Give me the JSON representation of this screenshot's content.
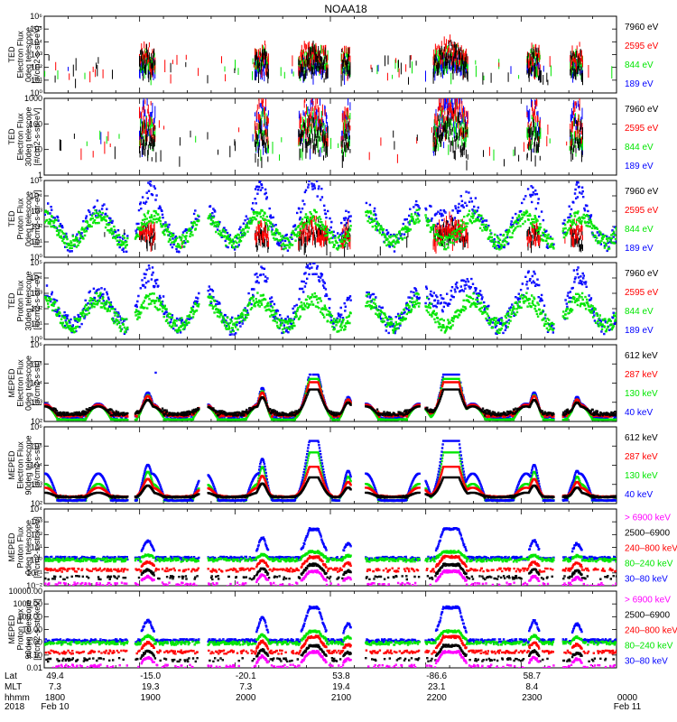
{
  "title": "NOAA18",
  "colors": {
    "black": "#000000",
    "red": "#ff0000",
    "green": "#00e600",
    "blue": "#0000ff",
    "magenta": "#ff00ff"
  },
  "chart_data": [
    {
      "type": "scatter",
      "ylabel_lines": [
        "TED",
        "Electron Flux",
        "0deg telescope",
        "[#/cm2-s-str-eV]"
      ],
      "yscale": "log",
      "ylim": [
        1,
        1000000
      ],
      "yticks": [
        {
          "v": 1,
          "label": "10⁰"
        },
        {
          "v": 10,
          "label": "10¹"
        },
        {
          "v": 100,
          "label": "10²"
        },
        {
          "v": 1000,
          "label": "10³"
        },
        {
          "v": 10000,
          "label": "10⁴"
        },
        {
          "v": 100000,
          "label": "10⁵"
        },
        {
          "v": 1000000,
          "label": "10⁶"
        }
      ],
      "legend": [
        {
          "label": "7960 eV",
          "color": "#000000"
        },
        {
          "label": "2595 eV",
          "color": "#ff0000"
        },
        {
          "label": "844 eV",
          "color": "#00e600"
        },
        {
          "label": "189 eV",
          "color": "#0000ff"
        }
      ],
      "draw_order": [
        3,
        2,
        1,
        0
      ],
      "series": [
        {
          "model": "spiky",
          "params": {
            "base": 40,
            "amp": 10,
            "peak": 600,
            "density": 0.5
          }
        },
        {
          "model": "spiky",
          "params": {
            "base": 80,
            "amp": 6,
            "peak": 2500,
            "density": 0.55
          }
        },
        {
          "model": "spiky",
          "params": {
            "base": 60,
            "amp": 5,
            "peak": 1200,
            "density": 0.35
          }
        },
        {
          "model": "spiky",
          "params": {
            "base": 60,
            "amp": 3,
            "peak": 500,
            "density": 0.1
          }
        }
      ]
    },
    {
      "type": "scatter",
      "ylabel_lines": [
        "TED",
        "Electron Flux",
        "30deg telescope",
        "[#/cm2-s-str-eV]"
      ],
      "yscale": "log",
      "ylim": [
        1,
        1000
      ],
      "yticks": [
        {
          "v": 1,
          "label": "1"
        },
        {
          "v": 10,
          "label": "10"
        },
        {
          "v": 100,
          "label": "100"
        },
        {
          "v": 1000,
          "label": "1000"
        }
      ],
      "legend": [
        {
          "label": "7960 eV",
          "color": "#000000"
        },
        {
          "label": "2595 eV",
          "color": "#ff0000"
        },
        {
          "label": "844 eV",
          "color": "#00e600"
        },
        {
          "label": "189 eV",
          "color": "#0000ff"
        }
      ],
      "draw_order": [
        3,
        2,
        1,
        0
      ],
      "series": [
        {
          "model": "spiky",
          "params": {
            "base": 8,
            "amp": 4,
            "peak": 60,
            "density": 0.5
          }
        },
        {
          "model": "spiky",
          "params": {
            "base": 15,
            "amp": 4,
            "peak": 400,
            "density": 0.5
          }
        },
        {
          "model": "spiky",
          "params": {
            "base": 12,
            "amp": 3,
            "peak": 150,
            "density": 0.3
          }
        },
        {
          "model": "spiky",
          "params": {
            "base": 20,
            "amp": 5,
            "peak": 300,
            "density": 0.12
          }
        }
      ]
    },
    {
      "type": "scatter",
      "ylabel_lines": [
        "TED",
        "Proton Flux",
        "0deg telescope",
        "[#/cm2-s-str-eV]"
      ],
      "yscale": "log",
      "ylim": [
        1,
        100000
      ],
      "yticks": [
        {
          "v": 1,
          "label": "10⁰"
        },
        {
          "v": 10,
          "label": "10¹"
        },
        {
          "v": 100,
          "label": "10²"
        },
        {
          "v": 1000,
          "label": "10³"
        },
        {
          "v": 10000,
          "label": "10⁴"
        },
        {
          "v": 100000,
          "label": "10⁵"
        }
      ],
      "legend": [
        {
          "label": "7960 eV",
          "color": "#000000"
        },
        {
          "label": "2595 eV",
          "color": "#ff0000"
        },
        {
          "label": "844 eV",
          "color": "#00e600"
        },
        {
          "label": "189 eV",
          "color": "#0000ff"
        }
      ],
      "draw_order": [
        3,
        0,
        1,
        2
      ],
      "series": [
        {
          "model": "spiky",
          "params": {
            "base": 10,
            "amp": 4,
            "peak": 60,
            "density": 0.15
          }
        },
        {
          "model": "spiky",
          "params": {
            "base": 15,
            "amp": 4,
            "peak": 100,
            "density": 0.12
          }
        },
        {
          "model": "continuous",
          "params": {
            "base": 70,
            "amp": 14,
            "density": 1
          }
        },
        {
          "model": "continuous",
          "params": {
            "base": 120,
            "amp": 30,
            "density": 0.6,
            "peaky": 1
          }
        }
      ]
    },
    {
      "type": "scatter",
      "ylabel_lines": [
        "TED",
        "Proton Flux",
        "30deg telescope",
        "[#/cm2-s-str-eV]"
      ],
      "yscale": "log",
      "ylim": [
        1,
        100000
      ],
      "yticks": [
        {
          "v": 1,
          "label": "10⁰"
        },
        {
          "v": 10,
          "label": "10¹"
        },
        {
          "v": 100,
          "label": "10²"
        },
        {
          "v": 1000,
          "label": "10³"
        },
        {
          "v": 10000,
          "label": "10⁴"
        },
        {
          "v": 100000,
          "label": "10⁵"
        }
      ],
      "legend": [
        {
          "label": "7960 eV",
          "color": "#000000"
        },
        {
          "label": "2595 eV",
          "color": "#ff0000"
        },
        {
          "label": "844 eV",
          "color": "#00e600"
        },
        {
          "label": "189 eV",
          "color": "#0000ff"
        }
      ],
      "draw_order": [
        3,
        2
      ],
      "series": [
        {
          "model": "none",
          "params": {}
        },
        {
          "model": "none",
          "params": {}
        },
        {
          "model": "continuous",
          "params": {
            "base": 60,
            "amp": 14,
            "density": 1
          }
        },
        {
          "model": "continuous",
          "params": {
            "base": 100,
            "amp": 30,
            "density": 0.7,
            "peaky": 1
          }
        }
      ]
    },
    {
      "type": "scatter",
      "ylabel_lines": [
        "MEPED",
        "Electron Flux",
        "0deg telescope",
        "[#/cm2-s-str]"
      ],
      "yscale": "log",
      "ylim": [
        100,
        1000000
      ],
      "yticks": [
        {
          "v": 100,
          "label": "10²"
        },
        {
          "v": 1000,
          "label": "10³"
        },
        {
          "v": 10000,
          "label": "10⁴"
        },
        {
          "v": 100000,
          "label": "10⁵"
        },
        {
          "v": 1000000,
          "label": "10⁶"
        }
      ],
      "legend": [
        {
          "label": "612 keV",
          "color": "#000000"
        },
        {
          "label": "287 keV",
          "color": "#ff0000"
        },
        {
          "label": "130 keV",
          "color": "#00e600"
        },
        {
          "label": "40 keV",
          "color": "#0000ff"
        }
      ],
      "draw_order": [
        3,
        2,
        1,
        0
      ],
      "series": [
        {
          "model": "floor",
          "params": {
            "floor": 220,
            "amp": 3,
            "peak": 5000,
            "density": 1
          }
        },
        {
          "model": "floor",
          "params": {
            "floor": 190,
            "amp": 2.5,
            "peak": 12000,
            "density": 0.9
          }
        },
        {
          "model": "floor",
          "params": {
            "floor": 130,
            "amp": 1.2,
            "peak": 18000,
            "density": 1
          }
        },
        {
          "model": "floor",
          "params": {
            "floor": 140,
            "amp": 4,
            "peak": 30000,
            "density": 0.8,
            "spikes": 1
          }
        }
      ]
    },
    {
      "type": "scatter",
      "ylabel_lines": [
        "MEPED",
        "Electron Flux",
        "90deg telescope",
        "[#/cm2-s-str]"
      ],
      "yscale": "log",
      "ylim": [
        100,
        1000000
      ],
      "yticks": [
        {
          "v": 100,
          "label": "10²"
        },
        {
          "v": 1000,
          "label": "10³"
        },
        {
          "v": 10000,
          "label": "10⁴"
        },
        {
          "v": 100000,
          "label": "10⁵"
        },
        {
          "v": 1000000,
          "label": "10⁶"
        }
      ],
      "legend": [
        {
          "label": "612 keV",
          "color": "#000000"
        },
        {
          "label": "287 keV",
          "color": "#ff0000"
        },
        {
          "label": "130 keV",
          "color": "#00e600"
        },
        {
          "label": "40 keV",
          "color": "#0000ff"
        }
      ],
      "draw_order": [
        2,
        3,
        1,
        0
      ],
      "series": [
        {
          "model": "floor",
          "params": {
            "floor": 220,
            "amp": 1.5,
            "peak": 2500,
            "density": 1,
            "scale": 0.7
          }
        },
        {
          "model": "floor",
          "params": {
            "floor": 230,
            "amp": 1.5,
            "peak": 9000,
            "density": 1,
            "scale": 0.9
          }
        },
        {
          "model": "floor",
          "params": {
            "floor": 150,
            "amp": 1.3,
            "peak": 50000,
            "density": 1,
            "scale": 1
          }
        },
        {
          "model": "floor",
          "params": {
            "floor": 150,
            "amp": 1.3,
            "peak": 200000,
            "density": 1,
            "scale": 1.3
          }
        }
      ]
    },
    {
      "type": "scatter",
      "ylabel_lines": [
        "MEPED",
        "Proton Flux",
        "0deg telescope",
        "[#/cm2-s-str-keV]"
      ],
      "yscale": "log",
      "ylim": [
        0.01,
        10000
      ],
      "yticks": [
        {
          "v": 0.01,
          "label": "10⁻²"
        },
        {
          "v": 0.1,
          "label": "10⁻¹"
        },
        {
          "v": 1,
          "label": "10⁰"
        },
        {
          "v": 10,
          "label": "10¹"
        },
        {
          "v": 100,
          "label": "10²"
        },
        {
          "v": 1000,
          "label": "10³"
        },
        {
          "v": 10000,
          "label": "10⁴"
        }
      ],
      "legend": [
        {
          "label": "> 6900 keV",
          "color": "#ff00ff"
        },
        {
          "label": "2500–6900",
          "color": "#000000"
        },
        {
          "label": "240–800 keV",
          "color": "#ff0000"
        },
        {
          "label": "80–240 keV",
          "color": "#00e600"
        },
        {
          "label": "30–80 keV",
          "color": "#0000ff"
        }
      ],
      "draw_order": [
        4,
        3,
        2,
        1,
        0
      ],
      "series": [
        {
          "model": "proton",
          "params": {
            "floor": 0.015,
            "peak": 0.15,
            "density": 0.2
          }
        },
        {
          "model": "proton",
          "params": {
            "floor": 0.05,
            "peak": 0.5,
            "density": 0.2
          }
        },
        {
          "model": "proton",
          "params": {
            "floor": 0.2,
            "peak": 2,
            "density": 0.4
          }
        },
        {
          "model": "proton",
          "params": {
            "floor": 1.2,
            "peak": 5,
            "density": 0.6
          }
        },
        {
          "model": "proton",
          "params": {
            "floor": 1.6,
            "peak": 300,
            "density": 0.7
          }
        }
      ]
    },
    {
      "type": "scatter",
      "ylabel_lines": [
        "MEPED",
        "Proton Flux",
        "90deg telescope",
        "[#/cm2-s-str-keV]"
      ],
      "yscale": "log",
      "ylim": [
        0.01,
        10000
      ],
      "yticks": [
        {
          "v": 0.01,
          "label": "0.01"
        },
        {
          "v": 0.1,
          "label": "0.10"
        },
        {
          "v": 1,
          "label": "1.00"
        },
        {
          "v": 10,
          "label": "10.00"
        },
        {
          "v": 100,
          "label": "100.00"
        },
        {
          "v": 1000,
          "label": "1000.00"
        },
        {
          "v": 10000,
          "label": "10000.00"
        }
      ],
      "legend": [
        {
          "label": "> 6900 keV",
          "color": "#ff00ff"
        },
        {
          "label": "2500–6900",
          "color": "#000000"
        },
        {
          "label": "240–800 keV",
          "color": "#ff0000"
        },
        {
          "label": "80–240 keV",
          "color": "#00e600"
        },
        {
          "label": "30–80 keV",
          "color": "#0000ff"
        }
      ],
      "draw_order": [
        4,
        3,
        2,
        1,
        0
      ],
      "series": [
        {
          "model": "proton",
          "params": {
            "floor": 0.015,
            "peak": 0.2,
            "density": 0.2
          }
        },
        {
          "model": "proton",
          "params": {
            "floor": 0.05,
            "peak": 0.6,
            "density": 0.2
          }
        },
        {
          "model": "proton",
          "params": {
            "floor": 0.2,
            "peak": 3,
            "density": 0.4
          }
        },
        {
          "model": "proton",
          "params": {
            "floor": 1,
            "peak": 8,
            "density": 0.6
          }
        },
        {
          "model": "proton",
          "params": {
            "floor": 1.5,
            "peak": 600,
            "density": 0.7
          }
        }
      ]
    }
  ],
  "events": [
    {
      "t": 0.18,
      "w": 0.012,
      "s": 0.6
    },
    {
      "t": 0.38,
      "w": 0.01,
      "s": 0.7
    },
    {
      "t": 0.47,
      "w": 0.018,
      "s": 1.2
    },
    {
      "t": 0.53,
      "w": 0.01,
      "s": 0.5
    },
    {
      "t": 0.71,
      "w": 0.02,
      "s": 1.6
    },
    {
      "t": 0.855,
      "w": 0.01,
      "s": 0.6
    },
    {
      "t": 0.93,
      "w": 0.01,
      "s": 0.5
    }
  ],
  "gaps": [
    [
      0.145,
      0.158
    ],
    [
      0.27,
      0.285
    ],
    [
      0.535,
      0.56
    ],
    [
      0.655,
      0.665
    ],
    [
      0.89,
      0.905
    ]
  ],
  "x_axis": {
    "rows": [
      {
        "name": "Lat",
        "label": "Lat"
      },
      {
        "name": "MLT",
        "label": "MLT"
      },
      {
        "name": "hhmm",
        "label": "hhmm"
      },
      {
        "name": "date",
        "label": "2018"
      }
    ],
    "ticks": [
      {
        "t": 0.0,
        "lat": "49.4",
        "mlt": "7.3",
        "hhmm": "1800",
        "date": "Feb 10"
      },
      {
        "t": 0.1667,
        "lat": "-15.0",
        "mlt": "19.3",
        "hhmm": "1900",
        "date": ""
      },
      {
        "t": 0.3333,
        "lat": "-20.1",
        "mlt": "7.3",
        "hhmm": "2000",
        "date": ""
      },
      {
        "t": 0.5,
        "lat": "53.8",
        "mlt": "19.4",
        "hhmm": "2100",
        "date": ""
      },
      {
        "t": 0.6667,
        "lat": "-86.6",
        "mlt": "23.1",
        "hhmm": "2200",
        "date": ""
      },
      {
        "t": 0.8333,
        "lat": "58.7",
        "mlt": "8.4",
        "hhmm": "2300",
        "date": ""
      },
      {
        "t": 1.0,
        "lat": "",
        "mlt": "",
        "hhmm": "0000",
        "date": "Feb 11"
      }
    ]
  }
}
